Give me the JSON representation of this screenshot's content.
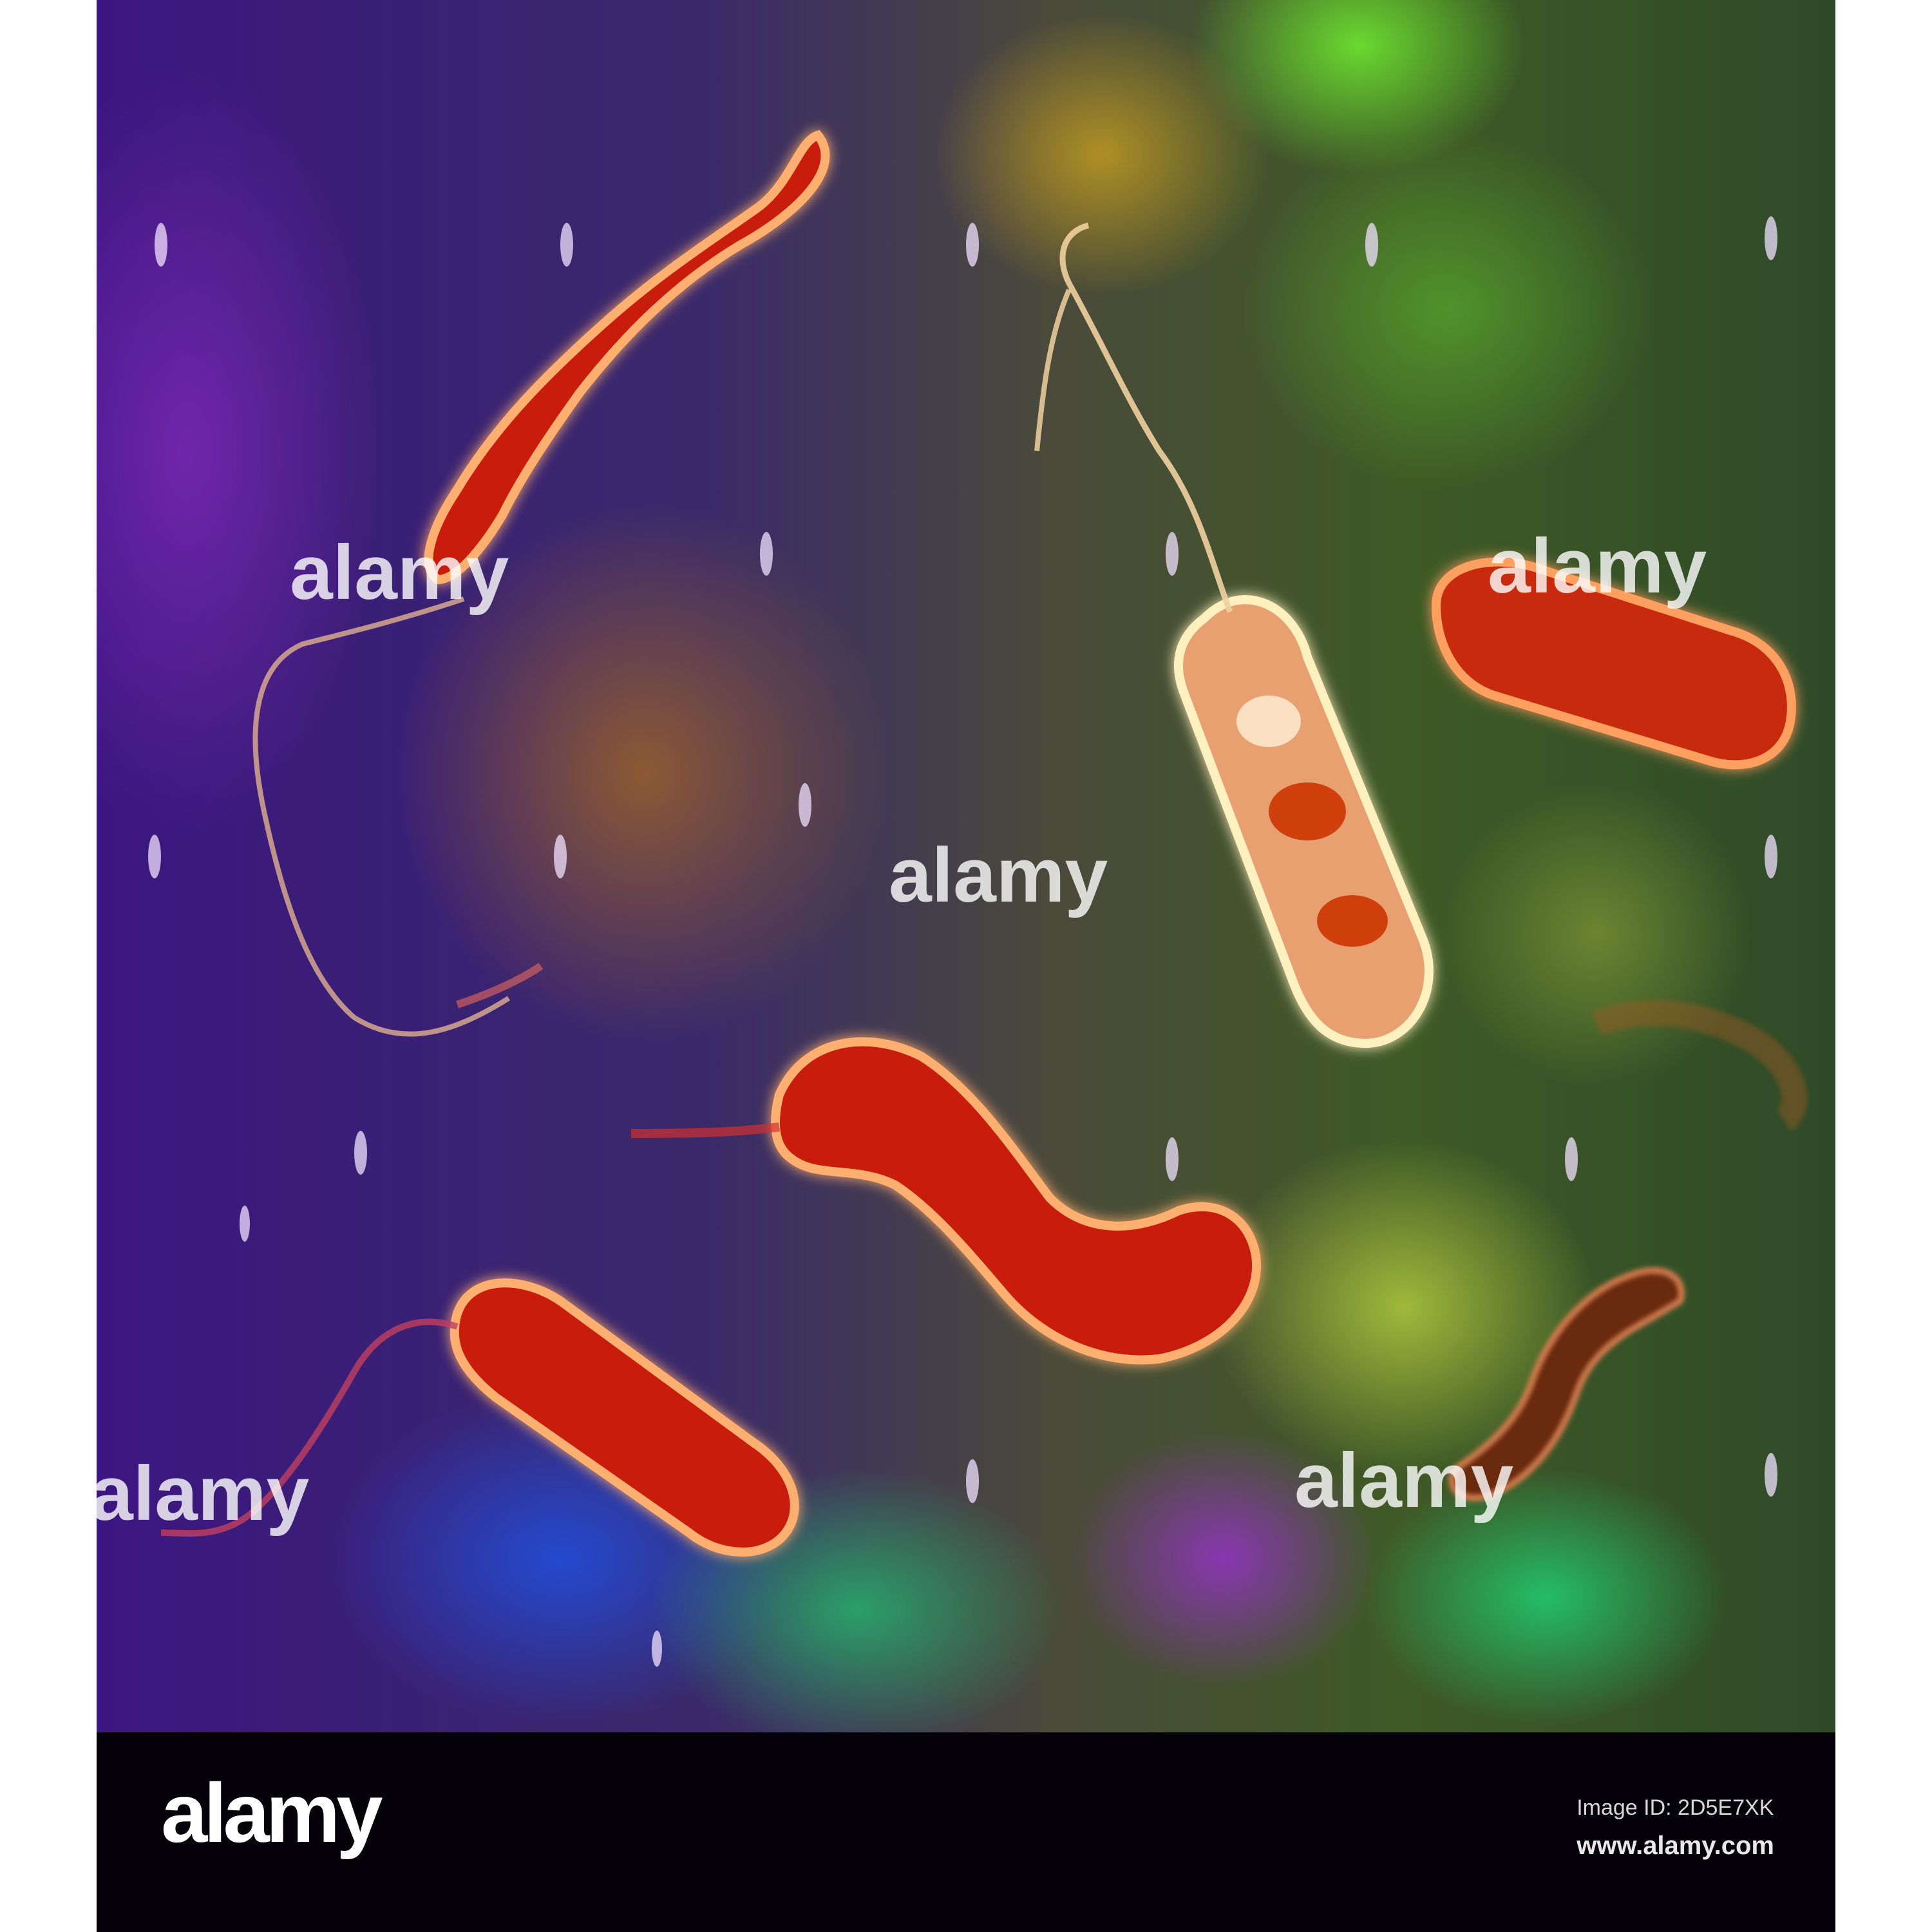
{
  "image": {
    "subject": "spiral-shaped bacteria over a multicolour background",
    "footer": {
      "logo": "alamy",
      "image_id_line": "Image ID: 2D5E7XK",
      "site": "www.alamy.com"
    },
    "watermark_text": "alamy",
    "colors": {
      "background_left": "#3a1a7a",
      "background_right": "#2c5a22",
      "bacteria_fill": "#c81e08",
      "bacteria_outline": "#ffb070",
      "footer_bg": "#040208"
    }
  }
}
